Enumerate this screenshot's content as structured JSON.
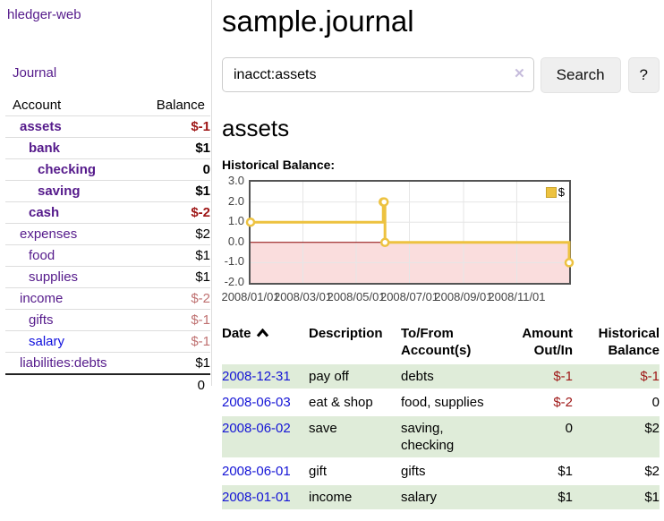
{
  "app": {
    "brand": "hledger-web"
  },
  "nav": {
    "journal": "Journal"
  },
  "sidebar": {
    "accounts_header": {
      "account": "Account",
      "balance": "Balance"
    },
    "accounts": [
      {
        "name": "assets",
        "balance": "$-1",
        "level": 1,
        "bold": true
      },
      {
        "name": "bank",
        "balance": "$1",
        "level": 2,
        "bold": true
      },
      {
        "name": "checking",
        "balance": "0",
        "level": 3,
        "bold": true
      },
      {
        "name": "saving",
        "balance": "$1",
        "level": 3,
        "bold": true
      },
      {
        "name": "cash",
        "balance": "$-2",
        "level": 2,
        "bold": true
      },
      {
        "name": "expenses",
        "balance": "$2",
        "level": 1,
        "bold": false
      },
      {
        "name": "food",
        "balance": "$1",
        "level": 2,
        "bold": false
      },
      {
        "name": "supplies",
        "balance": "$1",
        "level": 2,
        "bold": false
      },
      {
        "name": "income",
        "balance": "$-2",
        "level": 1,
        "bold": false
      },
      {
        "name": "gifts",
        "balance": "$-1",
        "level": 2,
        "bold": false
      },
      {
        "name": "salary",
        "balance": "$-1",
        "level": 2,
        "bold": false,
        "link_color": "blue"
      },
      {
        "name": "liabilities:debts",
        "balance": "$1",
        "level": 1,
        "bold": false
      }
    ],
    "total": "0"
  },
  "main": {
    "title": "sample.journal",
    "search": {
      "query": "inacct:assets",
      "clear_icon": "✕",
      "search_button": "Search",
      "help_button": "?"
    },
    "account_heading": "assets",
    "chart_label": "Historical Balance:",
    "register": {
      "headers": {
        "date": "Date",
        "sort_icon": "caret-up",
        "description": "Description",
        "accounts": "To/From Account(s)",
        "amount": "Amount Out/In",
        "balance": "Historical Balance"
      },
      "rows": [
        {
          "date": "2008-12-31",
          "description": "pay off",
          "accounts": "debts",
          "amount": "$-1",
          "balance": "$-1"
        },
        {
          "date": "2008-06-03",
          "description": "eat & shop",
          "accounts": "food, supplies",
          "amount": "$-2",
          "balance": "0"
        },
        {
          "date": "2008-06-02",
          "description": "save",
          "accounts": "saving, checking",
          "amount": "0",
          "balance": "$2"
        },
        {
          "date": "2008-06-01",
          "description": "gift",
          "accounts": "gifts",
          "amount": "$1",
          "balance": "$2"
        },
        {
          "date": "2008-01-01",
          "description": "income",
          "accounts": "salary",
          "amount": "$1",
          "balance": "$1"
        }
      ]
    }
  },
  "chart_data": {
    "type": "line",
    "title": "Historical Balance",
    "step": true,
    "series": [
      {
        "name": "$",
        "color": "#edc240",
        "points": [
          {
            "date": "2008-01-01",
            "value": 1
          },
          {
            "date": "2008-06-01",
            "value": 2
          },
          {
            "date": "2008-06-02",
            "value": 2
          },
          {
            "date": "2008-06-03",
            "value": 0
          },
          {
            "date": "2008-12-31",
            "value": -1
          }
        ]
      }
    ],
    "x_range": [
      "2008-01-01",
      "2008-12-31"
    ],
    "y_range": [
      -2,
      3
    ],
    "x_ticks": [
      "2008/01/01",
      "2008/03/01",
      "2008/05/01",
      "2008/07/01",
      "2008/09/01",
      "2008/11/01"
    ],
    "y_ticks": [
      "3.0",
      "2.0",
      "1.0",
      "0.0",
      "-1.0",
      "-2.0"
    ],
    "legend": {
      "label": "$",
      "position": "top-right"
    },
    "grid": true,
    "negative_region_color": "#fadddd",
    "zero_line_color": "#8b0000",
    "grid_color": "#e6e6e6",
    "border_color": "#545454"
  },
  "colors": {
    "link_purple": "#551a8b",
    "link_blue": "#1414d6",
    "negative_strong": "#9e1616",
    "negative_soft": "#bf7171",
    "row_green": "#dfecd9",
    "chart_line": "#edc240"
  }
}
